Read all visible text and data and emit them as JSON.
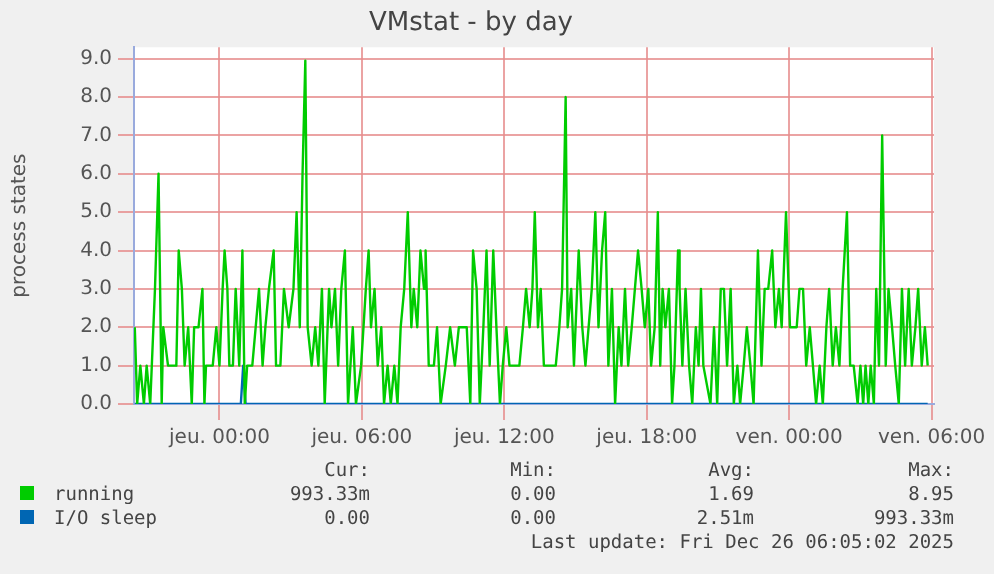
{
  "chart_data": {
    "type": "line",
    "title": "VMstat - by day",
    "ylabel": "process states",
    "xlim": [
      "2025-12-24T20:24",
      "2025-12-26T06:06"
    ],
    "xticks": [
      {
        "value": "2025-12-25T00:00",
        "label": "jeu. 00:00"
      },
      {
        "value": "2025-12-25T06:00",
        "label": "jeu. 06:00"
      },
      {
        "value": "2025-12-25T12:00",
        "label": "jeu. 12:00"
      },
      {
        "value": "2025-12-25T18:00",
        "label": "jeu. 18:00"
      },
      {
        "value": "2025-12-26T00:00",
        "label": "ven. 00:00"
      },
      {
        "value": "2025-12-26T06:00",
        "label": "ven. 06:00"
      }
    ],
    "ylim": [
      0,
      9.3
    ],
    "yticks": [
      {
        "value": 0,
        "label": "0.0"
      },
      {
        "value": 1,
        "label": "1.0"
      },
      {
        "value": 2,
        "label": "2.0"
      },
      {
        "value": 3,
        "label": "3.0"
      },
      {
        "value": 4,
        "label": "4.0"
      },
      {
        "value": 5,
        "label": "5.0"
      },
      {
        "value": 6,
        "label": "6.0"
      },
      {
        "value": 7,
        "label": "7.0"
      },
      {
        "value": 8,
        "label": "8.0"
      },
      {
        "value": 9,
        "label": "9.0"
      }
    ],
    "grid": true,
    "legend": "bottom",
    "marker": "none",
    "line_style": "solid",
    "series": [
      {
        "name": "running",
        "color": "#00cc00",
        "x": [
          "2025-12-24T20:26",
          "2025-12-24T20:32",
          "2025-12-24T20:40",
          "2025-12-24T20:49",
          "2025-12-24T20:56",
          "2025-12-24T21:05",
          "2025-12-24T21:17",
          "2025-12-24T21:26",
          "2025-12-24T21:34",
          "2025-12-24T21:38",
          "2025-12-24T21:50",
          "2025-12-24T22:11",
          "2025-12-24T22:17",
          "2025-12-24T22:25",
          "2025-12-24T22:32",
          "2025-12-24T22:41",
          "2025-12-24T22:50",
          "2025-12-24T22:56",
          "2025-12-24T23:07",
          "2025-12-24T23:17",
          "2025-12-24T23:22",
          "2025-12-24T23:26",
          "2025-12-24T23:43",
          "2025-12-24T23:52",
          "2025-12-25T00:00",
          "2025-12-25T00:08",
          "2025-12-25T00:13",
          "2025-12-25T00:20",
          "2025-12-25T00:25",
          "2025-12-25T00:34",
          "2025-12-25T00:41",
          "2025-12-25T00:50",
          "2025-12-25T00:58",
          "2025-12-25T01:04",
          "2025-12-25T01:10",
          "2025-12-25T01:23",
          "2025-12-25T01:40",
          "2025-12-25T01:49",
          "2025-12-25T01:56",
          "2025-12-25T02:05",
          "2025-12-25T02:17",
          "2025-12-25T02:23",
          "2025-12-25T02:34",
          "2025-12-25T02:43",
          "2025-12-25T02:55",
          "2025-12-25T03:07",
          "2025-12-25T03:15",
          "2025-12-25T03:23",
          "2025-12-25T03:30",
          "2025-12-25T03:37",
          "2025-12-25T03:43",
          "2025-12-25T03:53",
          "2025-12-25T04:02",
          "2025-12-25T04:10",
          "2025-12-25T04:19",
          "2025-12-25T04:26",
          "2025-12-25T04:37",
          "2025-12-25T04:43",
          "2025-12-25T04:52",
          "2025-12-25T05:00",
          "2025-12-25T05:08",
          "2025-12-25T05:17",
          "2025-12-25T05:25",
          "2025-12-25T05:37",
          "2025-12-25T05:45",
          "2025-12-25T05:58",
          "2025-12-25T06:10",
          "2025-12-25T06:17",
          "2025-12-25T06:23",
          "2025-12-25T06:32",
          "2025-12-25T06:40",
          "2025-12-25T06:49",
          "2025-12-25T06:56",
          "2025-12-25T07:05",
          "2025-12-25T07:13",
          "2025-12-25T07:22",
          "2025-12-25T07:30",
          "2025-12-25T07:38",
          "2025-12-25T07:47",
          "2025-12-25T07:56",
          "2025-12-25T08:05",
          "2025-12-25T08:11",
          "2025-12-25T08:20",
          "2025-12-25T08:28",
          "2025-12-25T08:37",
          "2025-12-25T08:41",
          "2025-12-25T08:49",
          "2025-12-25T09:02",
          "2025-12-25T09:10",
          "2025-12-25T09:19",
          "2025-12-25T09:32",
          "2025-12-25T09:43",
          "2025-12-25T09:55",
          "2025-12-25T10:05",
          "2025-12-25T10:25",
          "2025-12-25T10:34",
          "2025-12-25T10:41",
          "2025-12-25T10:50",
          "2025-12-25T10:58",
          "2025-12-25T11:07",
          "2025-12-25T11:15",
          "2025-12-25T11:23",
          "2025-12-25T11:32",
          "2025-12-25T11:40",
          "2025-12-25T11:49",
          "2025-12-25T11:56",
          "2025-12-25T12:05",
          "2025-12-25T12:13",
          "2025-12-25T12:38",
          "2025-12-25T12:47",
          "2025-12-25T12:55",
          "2025-12-25T13:04",
          "2025-12-25T13:11",
          "2025-12-25T13:17",
          "2025-12-25T13:25",
          "2025-12-25T13:32",
          "2025-12-25T13:40",
          "2025-12-25T14:10",
          "2025-12-25T14:19",
          "2025-12-25T14:26",
          "2025-12-25T14:35",
          "2025-12-25T14:40",
          "2025-12-25T14:49",
          "2025-12-25T14:56",
          "2025-12-25T15:08",
          "2025-12-25T15:17",
          "2025-12-25T15:25",
          "2025-12-25T15:41",
          "2025-12-25T15:50",
          "2025-12-25T15:58",
          "2025-12-25T16:07",
          "2025-12-25T16:15",
          "2025-12-25T16:23",
          "2025-12-25T16:32",
          "2025-12-25T16:40",
          "2025-12-25T16:49",
          "2025-12-25T16:56",
          "2025-12-25T17:05",
          "2025-12-25T17:13",
          "2025-12-25T17:22",
          "2025-12-25T17:38",
          "2025-12-25T17:47",
          "2025-12-25T17:55",
          "2025-12-25T18:04",
          "2025-12-25T18:11",
          "2025-12-25T18:20",
          "2025-12-25T18:28",
          "2025-12-25T18:34",
          "2025-12-25T18:40",
          "2025-12-25T18:47",
          "2025-12-25T18:56",
          "2025-12-25T19:04",
          "2025-12-25T19:10",
          "2025-12-25T19:19",
          "2025-12-25T19:23",
          "2025-12-25T19:30",
          "2025-12-25T19:38",
          "2025-12-25T19:47",
          "2025-12-25T19:55",
          "2025-12-25T20:04",
          "2025-12-25T20:11",
          "2025-12-25T20:17",
          "2025-12-25T20:23",
          "2025-12-25T20:41",
          "2025-12-25T20:50",
          "2025-12-25T20:58",
          "2025-12-25T21:07",
          "2025-12-25T21:15",
          "2025-12-25T21:23",
          "2025-12-25T21:32",
          "2025-12-25T21:40",
          "2025-12-25T21:49",
          "2025-12-25T21:56",
          "2025-12-25T22:05",
          "2025-12-25T22:13",
          "2025-12-25T22:22",
          "2025-12-25T22:30",
          "2025-12-25T22:41",
          "2025-12-25T22:50",
          "2025-12-25T22:58",
          "2025-12-25T23:07",
          "2025-12-25T23:17",
          "2025-12-25T23:25",
          "2025-12-25T23:34",
          "2025-12-25T23:41",
          "2025-12-25T23:52",
          "2025-12-26T00:02",
          "2025-12-26T00:19",
          "2025-12-26T00:26",
          "2025-12-26T00:35",
          "2025-12-26T00:43",
          "2025-12-26T00:52",
          "2025-12-26T01:00",
          "2025-12-26T01:08",
          "2025-12-26T01:17",
          "2025-12-26T01:25",
          "2025-12-26T01:34",
          "2025-12-26T01:41",
          "2025-12-26T01:50",
          "2025-12-26T01:58",
          "2025-12-26T02:07",
          "2025-12-26T02:15",
          "2025-12-26T02:26",
          "2025-12-26T02:34",
          "2025-12-26T02:43",
          "2025-12-26T02:53",
          "2025-12-26T03:00",
          "2025-12-26T03:07",
          "2025-12-26T03:13",
          "2025-12-26T03:20",
          "2025-12-26T03:26",
          "2025-12-26T03:34",
          "2025-12-26T03:40",
          "2025-12-26T03:47",
          "2025-12-26T03:55",
          "2025-12-26T04:04",
          "2025-12-26T04:11",
          "2025-12-26T04:20",
          "2025-12-26T04:28",
          "2025-12-26T04:37",
          "2025-12-26T04:45",
          "2025-12-26T04:53",
          "2025-12-26T05:02",
          "2025-12-26T05:10",
          "2025-12-26T05:19",
          "2025-12-26T05:26",
          "2025-12-26T05:35",
          "2025-12-26T05:43",
          "2025-12-26T05:50"
        ],
        "values": [
          2,
          0,
          1,
          0,
          1,
          0,
          3,
          6,
          0,
          2,
          1,
          1,
          4,
          3,
          1,
          2,
          0,
          2,
          2,
          3,
          0,
          1,
          1,
          2,
          1,
          3,
          4,
          3,
          1,
          1,
          3,
          1,
          4,
          0,
          1,
          1,
          3,
          1,
          2,
          3,
          4,
          1,
          1,
          3,
          2,
          3,
          5,
          2,
          6,
          8.95,
          2,
          1,
          2,
          1,
          3,
          0,
          3,
          2,
          3,
          1,
          3,
          4,
          0,
          2,
          0,
          1,
          3,
          4,
          2,
          3,
          1,
          2,
          0,
          1,
          0,
          1,
          0,
          2,
          3,
          5,
          2,
          3,
          2,
          4,
          3,
          4,
          1,
          1,
          2,
          0,
          1,
          2,
          1,
          2,
          2,
          0,
          4,
          3,
          0,
          2,
          4,
          1,
          4,
          2,
          0,
          1,
          2,
          1,
          1,
          2,
          3,
          2,
          3,
          5,
          2,
          3,
          1,
          1,
          2,
          3,
          8,
          2,
          3,
          1,
          4,
          2,
          1,
          3,
          5,
          2,
          4,
          5,
          1,
          3,
          0,
          2,
          1,
          3,
          1,
          2,
          4,
          3,
          2,
          3,
          1,
          2,
          5,
          1,
          3,
          2,
          3,
          0,
          1,
          4,
          3,
          1,
          3,
          1,
          0,
          2,
          1,
          3,
          1,
          0,
          2,
          0,
          3,
          3,
          1,
          3,
          0,
          1,
          0,
          1,
          2,
          1,
          0,
          4,
          1,
          3,
          3,
          4,
          2,
          3,
          2,
          5,
          2,
          2,
          3,
          3,
          1,
          2,
          1,
          0,
          1,
          0,
          2,
          3,
          1,
          2,
          1,
          3,
          5,
          1,
          1,
          0,
          1,
          0,
          1,
          0,
          1,
          0,
          3,
          1,
          7,
          1,
          3,
          2,
          1,
          0,
          3,
          1,
          3,
          1,
          2,
          3,
          1,
          2,
          1
        ]
      },
      {
        "name": "I/O sleep",
        "color": "#0066b3",
        "x": [
          "2025-12-24T20:26",
          "2025-12-25T00:54",
          "2025-12-25T01:00",
          "2025-12-25T01:06",
          "2025-12-26T05:50"
        ],
        "values": [
          0,
          0,
          1,
          0,
          0
        ]
      }
    ],
    "annotations": [
      "Cur:",
      "Min:",
      "Avg:",
      "Max:",
      "993.33m",
      "0.00",
      "1.69",
      "8.95",
      "0.00",
      "0.00",
      "2.51m",
      "993.33m",
      "Last update: Fri Dec 26 06:05:02 2025"
    ]
  }
}
